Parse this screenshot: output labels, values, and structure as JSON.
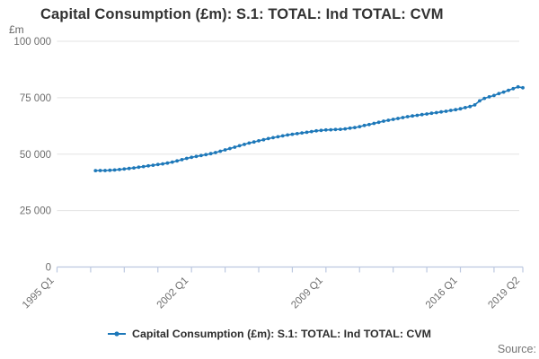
{
  "title": "Capital Consumption (£m): S.1: TOTAL: Ind TOTAL: CVM",
  "y_axis": {
    "unit_label": "£m",
    "tick_labels": [
      "100 000",
      "75 000",
      "50 000",
      "25 000",
      "0"
    ]
  },
  "x_axis": {
    "labels": [
      "1995 Q1",
      "2002 Q1",
      "2009 Q1",
      "2016 Q1",
      "2019 Q2"
    ]
  },
  "legend": {
    "label": "Capital Consumption (£m): S.1: TOTAL: Ind TOTAL: CVM"
  },
  "footer": {
    "source_label": "Source:"
  },
  "colors": {
    "line": "#1d78b9",
    "gridline": "#e3e3e3",
    "axis": "#bcc8e0",
    "tick_text": "#6e6e6e",
    "title_text": "#333333",
    "source_text": "#757575"
  },
  "chart_data": {
    "type": "line",
    "title": "Capital Consumption (£m): S.1: TOTAL: Ind TOTAL: CVM",
    "ylabel": "£m",
    "ylim": [
      0,
      100000
    ],
    "y_ticks": [
      100000,
      75000,
      50000,
      25000,
      0
    ],
    "grid": "horizontal",
    "legend_position": "bottom",
    "x_axis_range": [
      "1995 Q1",
      "2019 Q2"
    ],
    "x_minor_tick_quarters": [
      0,
      7,
      14,
      21,
      28,
      35,
      42,
      49,
      56,
      63,
      70,
      77,
      84,
      91,
      97
    ],
    "x_labeled_ticks": [
      {
        "q": 0,
        "label": "1995 Q1"
      },
      {
        "q": 28,
        "label": "2002 Q1"
      },
      {
        "q": 56,
        "label": "2009 Q1"
      },
      {
        "q": 84,
        "label": "2016 Q1"
      },
      {
        "q": 97,
        "label": "2019 Q2"
      }
    ],
    "series": [
      {
        "name": "Capital Consumption (£m): S.1: TOTAL: Ind TOTAL: CVM",
        "frequency": "quarterly",
        "start_period": "1997 Q1",
        "end_period": "2019 Q2",
        "start_quarter_offset": 8,
        "values": [
          42700,
          42750,
          42750,
          42850,
          43000,
          43200,
          43400,
          43650,
          43900,
          44200,
          44500,
          44800,
          45100,
          45400,
          45700,
          46050,
          46500,
          47000,
          47550,
          48100,
          48600,
          49000,
          49400,
          49800,
          50200,
          50700,
          51300,
          51900,
          52500,
          53100,
          53700,
          54300,
          54900,
          55400,
          55900,
          56400,
          56900,
          57300,
          57700,
          58100,
          58500,
          58800,
          59100,
          59400,
          59700,
          60000,
          60300,
          60500,
          60700,
          60800,
          60900,
          61000,
          61200,
          61500,
          61800,
          62200,
          62700,
          63100,
          63600,
          64100,
          64600,
          65000,
          65400,
          65800,
          66200,
          66600,
          66900,
          67200,
          67500,
          67800,
          68100,
          68400,
          68700,
          69000,
          69400,
          69700,
          70100,
          70600,
          71100,
          71800,
          73600,
          74700,
          75400,
          76000,
          76800,
          77500,
          78300,
          79000,
          79800,
          79400
        ]
      }
    ]
  }
}
